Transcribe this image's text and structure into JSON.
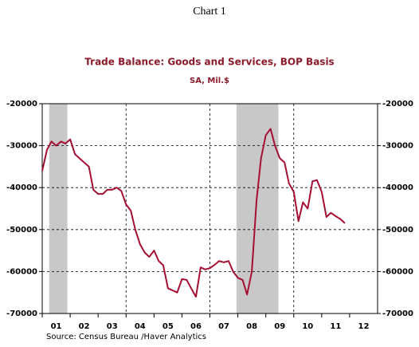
{
  "chart_data": {
    "type": "line",
    "heading": "Chart 1",
    "title": "Trade Balance:  Goods and Services, BOP Basis",
    "subtitle": "SA, Mil.$",
    "source": "Source:  Census Bureau /Haver Analytics",
    "x": [
      2001,
      2001.17,
      2001.33,
      2001.5,
      2001.67,
      2001.83,
      2002,
      2002.17,
      2002.33,
      2002.5,
      2002.67,
      2002.83,
      2003,
      2003.17,
      2003.33,
      2003.5,
      2003.67,
      2003.83,
      2004,
      2004.17,
      2004.33,
      2004.5,
      2004.67,
      2004.83,
      2005,
      2005.17,
      2005.33,
      2005.5,
      2005.67,
      2005.83,
      2006,
      2006.17,
      2006.33,
      2006.5,
      2006.67,
      2006.83,
      2007,
      2007.17,
      2007.33,
      2007.5,
      2007.67,
      2007.83,
      2008,
      2008.17,
      2008.33,
      2008.5,
      2008.67,
      2008.83,
      2009,
      2009.17,
      2009.33,
      2009.5,
      2009.67,
      2009.83,
      2010,
      2010.17,
      2010.33,
      2010.5,
      2010.67,
      2010.83,
      2011,
      2011.17,
      2011.33,
      2011.5,
      2011.67,
      2011.83
    ],
    "series": [
      {
        "color": "#a50f32",
        "values": [
          -36000,
          -31000,
          -29000,
          -30000,
          -29000,
          -29500,
          -28500,
          -32000,
          -33000,
          -34000,
          -35000,
          -40500,
          -41500,
          -41500,
          -40500,
          -40500,
          -40000,
          -40800,
          -44000,
          -45500,
          -50000,
          -53500,
          -55500,
          -56500,
          -55000,
          -57500,
          -58500,
          -64000,
          -64500,
          -65000,
          -61800,
          -62000,
          -64000,
          -66000,
          -59000,
          -59500,
          -59200,
          -58400,
          -57500,
          -57800,
          -57500,
          -60000,
          -61500,
          -62000,
          -65500,
          -60000,
          -43000,
          -33000,
          -27500,
          -26000,
          -30000,
          -33000,
          -34000,
          -39000,
          -41000,
          -48000,
          -43500,
          -45000,
          -38500,
          -38200,
          -41000,
          -47000,
          -46000,
          -46800,
          -47500,
          -48500
        ]
      }
    ],
    "xlim": [
      2001,
      2013
    ],
    "xticks": [
      {
        "value": 2001,
        "label": "01"
      },
      {
        "value": 2002,
        "label": "02"
      },
      {
        "value": 2003,
        "label": "03"
      },
      {
        "value": 2004,
        "label": "04"
      },
      {
        "value": 2005,
        "label": "05"
      },
      {
        "value": 2006,
        "label": "06"
      },
      {
        "value": 2007,
        "label": "07"
      },
      {
        "value": 2008,
        "label": "08"
      },
      {
        "value": 2009,
        "label": "09"
      },
      {
        "value": 2010,
        "label": "10"
      },
      {
        "value": 2011,
        "label": "11"
      },
      {
        "value": 2012,
        "label": "12"
      }
    ],
    "xgrid": [
      2004,
      2007,
      2010
    ],
    "shaded_periods": [
      [
        2001.25,
        2001.9
      ],
      [
        2007.95,
        2009.45
      ]
    ],
    "ylim": [
      -70000,
      -20000
    ],
    "yticks": [
      -20000,
      -30000,
      -40000,
      -50000,
      -60000,
      -70000
    ],
    "y2lim": [
      -70000,
      -20000
    ],
    "y2ticks": [
      -20000,
      -30000,
      -40000,
      -50000,
      -60000,
      -70000
    ],
    "grid": true
  }
}
